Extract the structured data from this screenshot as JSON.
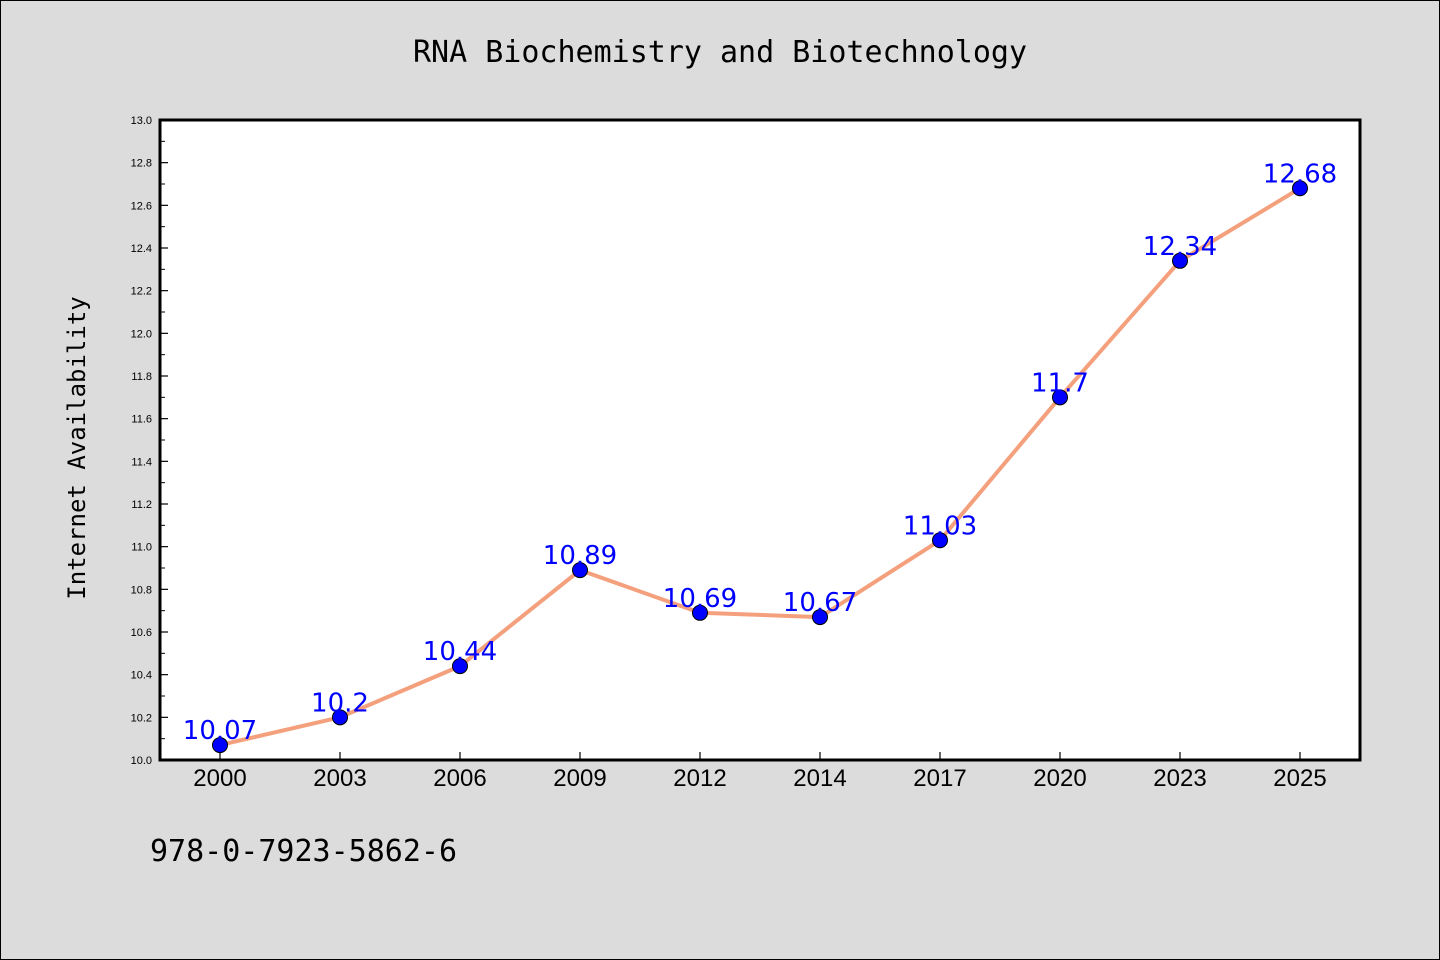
{
  "chart_data": {
    "type": "line",
    "title": "RNA Biochemistry and Biotechnology",
    "xlabel": "",
    "ylabel": "Internet Availability",
    "categories": [
      "2000",
      "2003",
      "2006",
      "2009",
      "2012",
      "2014",
      "2017",
      "2020",
      "2023",
      "2025"
    ],
    "series": [
      {
        "values": [
          10.07,
          10.2,
          10.44,
          10.89,
          10.69,
          10.67,
          11.03,
          11.7,
          12.34,
          12.68
        ],
        "labels": [
          "10.07",
          "10.2",
          "10.44",
          "10.89",
          "10.69",
          "10.67",
          "11.03",
          "11.7",
          "12.34",
          "12.68"
        ],
        "line_color": "#f4a07c",
        "marker_color": "#0000ff"
      }
    ],
    "ylim": [
      10.0,
      13.0
    ],
    "yticks": [
      "10.0",
      "10.2",
      "10.4",
      "10.6",
      "10.8",
      "11.0",
      "11.2",
      "11.4",
      "11.6",
      "11.8",
      "12.0",
      "12.2",
      "12.4",
      "12.6",
      "12.8",
      "13.0"
    ],
    "grid": false,
    "label_color": "#0000ff",
    "plot_background": "#ffffff",
    "background": "#dcdcdc"
  },
  "footer": {
    "isbn": "978-0-7923-5862-6"
  }
}
